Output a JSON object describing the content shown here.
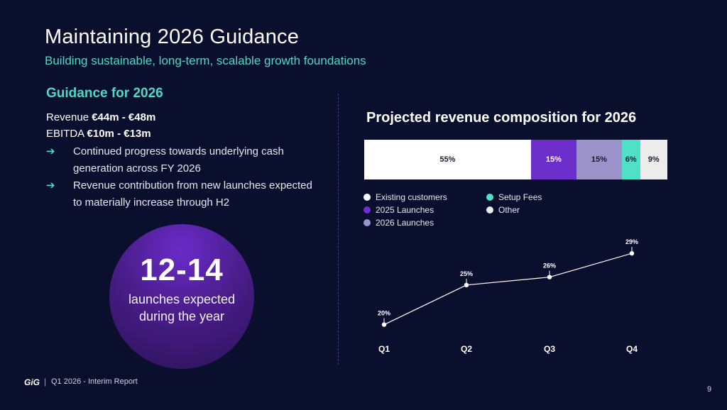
{
  "title": "Maintaining 2026 Guidance",
  "subtitle": "Building sustainable, long-term, scalable growth foundations",
  "guidance": {
    "heading": "Guidance for 2026",
    "revenue_label": "Revenue",
    "revenue_value": "€44m - €48m",
    "ebitda_label": "EBITDA",
    "ebitda_value": "€10m - €13m",
    "bullets": [
      "Continued progress towards underlying cash generation across FY 2026",
      "Revenue contribution from new launches expected to materially increase through H2"
    ]
  },
  "highlight": {
    "value": "12-14",
    "text": "launches expected during the year"
  },
  "colors": {
    "accent": "#4fd8c4",
    "background": "#0b0f2e",
    "existing": "#ffffff",
    "launch2025": "#6d2fcc",
    "launch2026": "#9b93c9",
    "setup": "#4fe0c8",
    "other": "#ececec"
  },
  "chart_data": [
    {
      "type": "bar",
      "stacked": true,
      "title": "Projected revenue composition for 2026",
      "series": [
        {
          "name": "Existing customers",
          "values": [
            55
          ],
          "label": "55%",
          "color": "#ffffff"
        },
        {
          "name": "2025 Launches",
          "values": [
            15
          ],
          "label": "15%",
          "color": "#6d2fcc"
        },
        {
          "name": "2026 Launches",
          "values": [
            15
          ],
          "label": "15%",
          "color": "#9b93c9"
        },
        {
          "name": "Setup Fees",
          "values": [
            6
          ],
          "label": "6%",
          "color": "#4fe0c8"
        },
        {
          "name": "Other",
          "values": [
            9
          ],
          "label": "9%",
          "color": "#ececec"
        }
      ],
      "legend_position": "bottom"
    },
    {
      "type": "line",
      "categories": [
        "Q1",
        "Q2",
        "Q3",
        "Q4"
      ],
      "values": [
        20,
        25,
        26,
        29
      ],
      "labels": [
        "20%",
        "25%",
        "26%",
        "29%"
      ],
      "ylim": [
        18,
        30
      ],
      "grid": false
    }
  ],
  "footer": {
    "logo": "GiG",
    "separator": "|",
    "text": "Q1 2026 - Interim Report",
    "page": "9"
  }
}
